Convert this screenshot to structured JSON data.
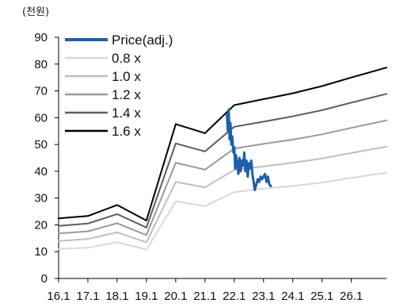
{
  "chart_data": {
    "type": "line",
    "unit_label": "(천원)",
    "title": "",
    "xlabel": "",
    "ylabel": "",
    "ylim": [
      0,
      90
    ],
    "yticks": [
      0,
      10,
      20,
      30,
      40,
      50,
      60,
      70,
      80,
      90
    ],
    "x_tick_labels": [
      "16.1",
      "17.1",
      "18.1",
      "19.1",
      "20.1",
      "21.1",
      "22.1",
      "23.1",
      "24.1",
      "25.1",
      "26.1"
    ],
    "xlim": [
      2016.0,
      2027.2
    ],
    "grid": false,
    "legend_placement": "top-left",
    "series": [
      {
        "name": "Price(adj.)",
        "color": "#1f5fa8",
        "x": [
          2021.75,
          2021.78,
          2021.81,
          2021.84,
          2021.87,
          2021.9,
          2021.93,
          2021.97,
          2022.0,
          2022.03,
          2022.06,
          2022.1,
          2022.14,
          2022.18,
          2022.22,
          2022.26,
          2022.3,
          2022.34,
          2022.38,
          2022.42,
          2022.46,
          2022.5,
          2022.54,
          2022.58,
          2022.62,
          2022.66,
          2022.7,
          2022.75,
          2022.8,
          2022.85,
          2022.9,
          2022.95,
          2023.0,
          2023.05,
          2023.1,
          2023.15,
          2023.2,
          2023.25
        ],
        "values": [
          61,
          55,
          63,
          52,
          58,
          50,
          53,
          47,
          49,
          41,
          46,
          43,
          39,
          45,
          40,
          44,
          42,
          47,
          40,
          44,
          38,
          43,
          41,
          44,
          39,
          36,
          33,
          35,
          37,
          36,
          38,
          37,
          38,
          39,
          36,
          38,
          35,
          34.5
        ]
      },
      {
        "name": "0.8 x",
        "color": "#d9d9d9",
        "x": [
          2016.0,
          2017.0,
          2018.0,
          2019.0,
          2020.0,
          2021.0,
          2022.0,
          2023.0,
          2024.0,
          2025.0,
          2026.0,
          2027.2
        ],
        "values": [
          11.0,
          11.5,
          13.5,
          10.8,
          28.8,
          27.0,
          32.2,
          33.5,
          34.5,
          35.8,
          37.5,
          39.5
        ]
      },
      {
        "name": "1.0 x",
        "color": "#bfbfbf",
        "x": [
          2016.0,
          2017.0,
          2018.0,
          2019.0,
          2020.0,
          2021.0,
          2022.0,
          2023.0,
          2024.0,
          2025.0,
          2026.0,
          2027.2
        ],
        "values": [
          14.0,
          14.7,
          17.2,
          13.5,
          36.0,
          34.0,
          40.5,
          41.8,
          43.2,
          44.8,
          46.8,
          49.2
        ]
      },
      {
        "name": "1.2 x",
        "color": "#9a9a9a",
        "x": [
          2016.0,
          2017.0,
          2018.0,
          2019.0,
          2020.0,
          2021.0,
          2022.0,
          2023.0,
          2024.0,
          2025.0,
          2026.0,
          2027.2
        ],
        "values": [
          16.8,
          17.6,
          20.6,
          16.2,
          43.2,
          40.6,
          48.5,
          50.2,
          51.8,
          53.8,
          56.2,
          59.0
        ]
      },
      {
        "name": "1.4 x",
        "color": "#5e5e5e",
        "x": [
          2016.0,
          2017.0,
          2018.0,
          2019.0,
          2020.0,
          2021.0,
          2022.0,
          2023.0,
          2024.0,
          2025.0,
          2026.0,
          2027.2
        ],
        "values": [
          19.6,
          20.5,
          24.0,
          19.0,
          50.4,
          47.4,
          56.6,
          58.5,
          60.5,
          62.8,
          65.6,
          68.9
        ]
      },
      {
        "name": "1.6 x",
        "color": "#000000",
        "x": [
          2016.0,
          2017.0,
          2018.0,
          2019.0,
          2020.0,
          2021.0,
          2022.0,
          2023.0,
          2024.0,
          2025.0,
          2026.0,
          2027.2
        ],
        "values": [
          22.4,
          23.3,
          27.4,
          21.6,
          57.6,
          54.2,
          64.7,
          66.9,
          69.1,
          71.8,
          75.0,
          78.7
        ]
      }
    ]
  }
}
